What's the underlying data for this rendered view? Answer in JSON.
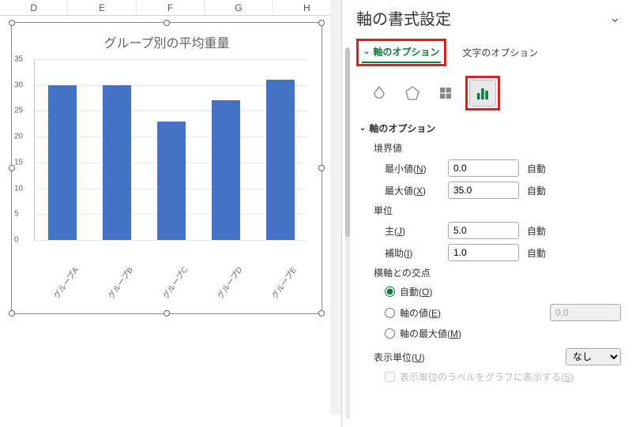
{
  "columns": [
    "D",
    "E",
    "F",
    "G",
    "H"
  ],
  "chart": {
    "type": "bar",
    "title": "グループ別の平均重量",
    "categories": [
      "グループA",
      "グループB",
      "グループC",
      "グループD",
      "グループE"
    ],
    "values": [
      30,
      30,
      23,
      27,
      31
    ],
    "ylim": [
      0,
      35
    ],
    "ytick_step": 5,
    "yticks": [
      0,
      5,
      10,
      15,
      20,
      25,
      30,
      35
    ],
    "bar_color": "#4472c4",
    "grid_color": "#e8e8e8",
    "title_color": "#666666",
    "axis_label_color": "#666666",
    "title_fontsize": 16,
    "tick_fontsize": 10
  },
  "panel": {
    "title": "軸の書式設定",
    "tabs": {
      "options": "軸のオプション",
      "text": "文字のオプション"
    },
    "section_header": "軸のオプション",
    "bounds": {
      "label": "境界値",
      "min_label": "最小値(N)",
      "min_value": "0.0",
      "min_suffix": "自動",
      "max_label": "最大値(X)",
      "max_value": "35.0",
      "max_suffix": "自動"
    },
    "units": {
      "label": "単位",
      "major_label": "主(J)",
      "major_value": "5.0",
      "major_suffix": "自動",
      "minor_label": "補助(I)",
      "minor_value": "1.0",
      "minor_suffix": "自動"
    },
    "cross": {
      "label": "横軸との交点",
      "auto": "自動(O)",
      "value": "軸の値(E)",
      "value_input": "0.0",
      "max": "軸の最大値(M)"
    },
    "display_units": {
      "label": "表示単位(U)",
      "selected": "なし",
      "checkbox": "表示単位のラベルをグラフに表示する(S)"
    }
  }
}
